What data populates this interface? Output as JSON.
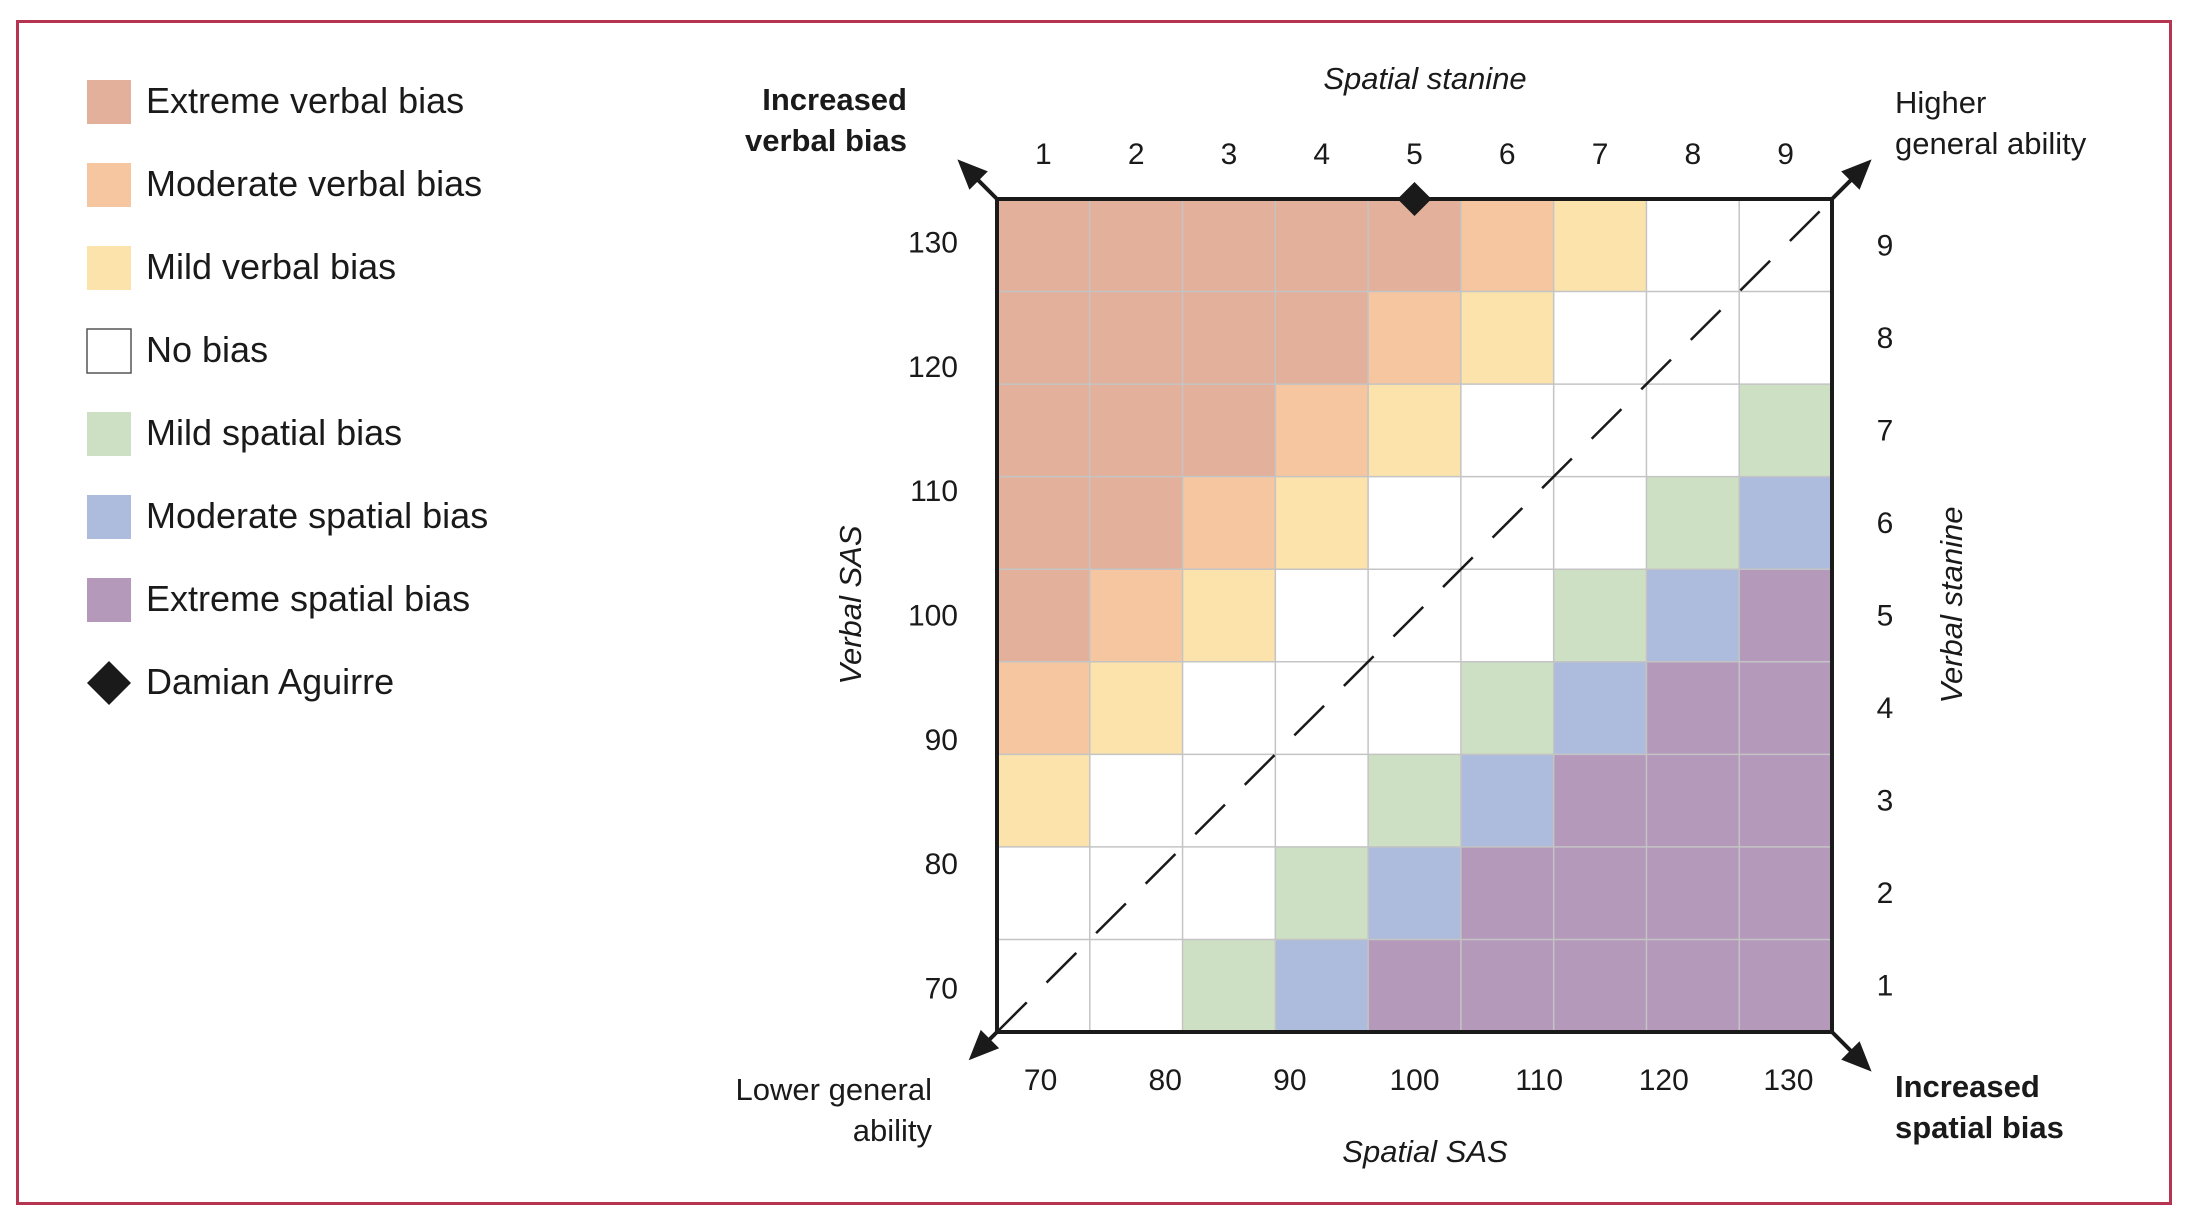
{
  "chart_data": {
    "type": "heatmap",
    "x_top_label": "Spatial stanine",
    "x_bottom_label": "Spatial SAS",
    "y_left_label": "Verbal SAS",
    "y_right_label": "Verbal stanine",
    "stanine_ticks": [
      "1",
      "2",
      "3",
      "4",
      "5",
      "6",
      "7",
      "8",
      "9"
    ],
    "sas_ticks": [
      "70",
      "80",
      "90",
      "100",
      "110",
      "120",
      "130"
    ],
    "sas_range": [
      66.5,
      133.5
    ],
    "corner_labels": {
      "top_left": [
        "Increased",
        "verbal bias"
      ],
      "top_right": [
        "Higher",
        "general ability"
      ],
      "bottom_left": [
        "Lower general",
        "ability"
      ],
      "bottom_right": [
        "Increased",
        "spatial bias"
      ]
    },
    "categories": [
      {
        "key": "EV",
        "label": "Extreme verbal bias",
        "color": "#e2b09b"
      },
      {
        "key": "MV",
        "label": "Moderate verbal bias",
        "color": "#f5c6a0"
      },
      {
        "key": "LV",
        "label": "Mild verbal bias",
        "color": "#fbe3ab"
      },
      {
        "key": "NB",
        "label": "No bias",
        "color": "#ffffff"
      },
      {
        "key": "LS",
        "label": "Mild spatial bias",
        "color": "#cde0c4"
      },
      {
        "key": "MS",
        "label": "Moderate spatial bias",
        "color": "#adbbdc"
      },
      {
        "key": "ES",
        "label": "Extreme spatial bias",
        "color": "#b499bb"
      }
    ],
    "grid_rows_top_to_bottom": [
      {
        "verbal_stanine": 9,
        "cells": [
          "EV",
          "EV",
          "EV",
          "EV",
          "EV",
          "MV",
          "LV",
          "NB",
          "NB"
        ]
      },
      {
        "verbal_stanine": 8,
        "cells": [
          "EV",
          "EV",
          "EV",
          "EV",
          "MV",
          "LV",
          "NB",
          "NB",
          "NB"
        ]
      },
      {
        "verbal_stanine": 7,
        "cells": [
          "EV",
          "EV",
          "EV",
          "MV",
          "LV",
          "NB",
          "NB",
          "NB",
          "LS"
        ]
      },
      {
        "verbal_stanine": 6,
        "cells": [
          "EV",
          "EV",
          "MV",
          "LV",
          "NB",
          "NB",
          "NB",
          "LS",
          "MS"
        ]
      },
      {
        "verbal_stanine": 5,
        "cells": [
          "EV",
          "MV",
          "LV",
          "NB",
          "NB",
          "NB",
          "LS",
          "MS",
          "ES"
        ]
      },
      {
        "verbal_stanine": 4,
        "cells": [
          "MV",
          "LV",
          "NB",
          "NB",
          "NB",
          "LS",
          "MS",
          "ES",
          "ES"
        ]
      },
      {
        "verbal_stanine": 3,
        "cells": [
          "LV",
          "NB",
          "NB",
          "NB",
          "LS",
          "MS",
          "ES",
          "ES",
          "ES"
        ]
      },
      {
        "verbal_stanine": 2,
        "cells": [
          "NB",
          "NB",
          "NB",
          "LS",
          "MS",
          "ES",
          "ES",
          "ES",
          "ES"
        ]
      },
      {
        "verbal_stanine": 1,
        "cells": [
          "NB",
          "NB",
          "LS",
          "MS",
          "ES",
          "ES",
          "ES",
          "ES",
          "ES"
        ]
      }
    ],
    "student": {
      "name": "Damian Aguirre",
      "spatial_stanine": 5,
      "verbal_stanine": 9
    },
    "diagonal_line": "dashed"
  }
}
